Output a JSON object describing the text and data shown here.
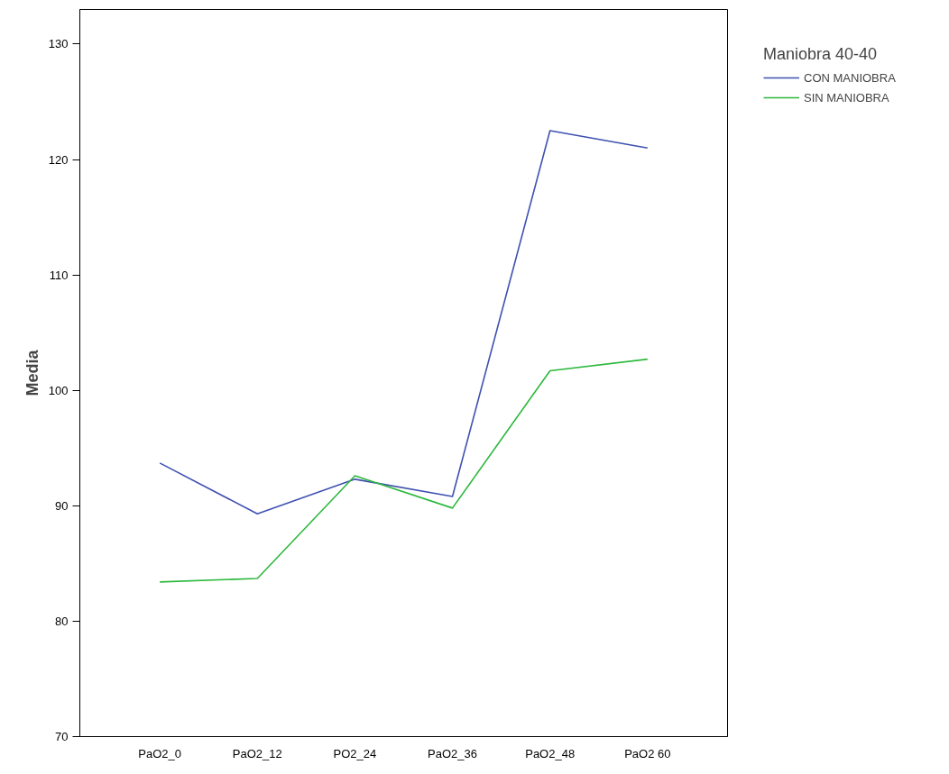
{
  "chart_data": {
    "type": "line",
    "ylabel": "Media",
    "legend_title": "Maniobra 40-40",
    "categories": [
      "PaO2_0",
      "PaO2_12",
      "PO2_24",
      "PaO2_36",
      "PaO2_48",
      "PaO2 60"
    ],
    "series": [
      {
        "name": "CON MANIOBRA",
        "color": "#3f51b0",
        "values": [
          93.7,
          89.3,
          92.3,
          90.8,
          122.5,
          121.0
        ]
      },
      {
        "name": "SIN MANIOBRA",
        "color": "#2db83d",
        "values": [
          83.4,
          83.7,
          92.6,
          89.8,
          101.7,
          102.7
        ]
      }
    ],
    "ylim": [
      70,
      133
    ],
    "yticks": [
      70,
      80,
      90,
      100,
      110,
      120,
      130
    ],
    "grid": false,
    "legend": "right",
    "marker": "none",
    "line_style": "solid"
  }
}
